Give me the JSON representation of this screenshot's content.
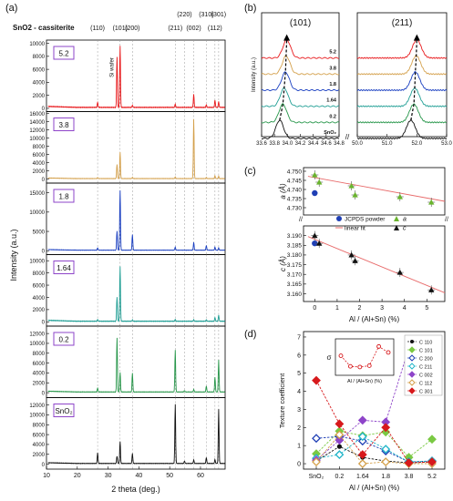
{
  "panels": {
    "a": "(a)",
    "b": "(b)",
    "c": "(c)",
    "d": "(d)"
  },
  "colors": {
    "5.2": "#e8191c",
    "3.8": "#d4a04b",
    "1.8": "#1a3fc1",
    "1.64": "#1f9e94",
    "0.2": "#27964a",
    "SnO2": "#111111",
    "green": "#6ab42e",
    "blue": "#1f3fb5",
    "red": "#e86a6a",
    "purple": "#7a3fc0"
  },
  "chart_data": [
    {
      "id": "a",
      "type": "line",
      "title": "SnO2 - cassiterite",
      "xlabel": "2 theta  (deg.)",
      "ylabel": "Intensity  (a.u.)",
      "xlim": [
        10,
        68
      ],
      "xticks": [
        10,
        20,
        30,
        40,
        50,
        60
      ],
      "hkl_labels": [
        {
          "label": "(110)",
          "x": 26.6
        },
        {
          "label": "(101)",
          "x": 33.9
        },
        {
          "label": "(200)",
          "x": 37.9
        },
        {
          "label": "(211)",
          "x": 51.8
        },
        {
          "label": "(220)",
          "x": 54.8
        },
        {
          "label": "(002)",
          "x": 57.8
        },
        {
          "label": "(310)",
          "x": 61.9
        },
        {
          "label": "(112)",
          "x": 64.7
        },
        {
          "label": "(301)",
          "x": 65.9
        }
      ],
      "reference_lines": [
        26.6,
        33.9,
        37.9,
        51.8,
        54.8,
        57.8,
        61.9,
        64.7,
        65.9
      ],
      "annotation": "Si wafer",
      "series": [
        {
          "name": "5.2",
          "ylim": [
            -500,
            10500
          ],
          "yticks": [
            0,
            2000,
            4000,
            6000,
            8000,
            10000
          ],
          "peaks": [
            [
              26.6,
              800
            ],
            [
              32.9,
              7800
            ],
            [
              33.9,
              9500
            ],
            [
              37.9,
              300
            ],
            [
              51.8,
              500
            ],
            [
              57.8,
              2000
            ],
            [
              61.9,
              400
            ],
            [
              64.7,
              1100
            ],
            [
              65.9,
              900
            ]
          ],
          "baseline": 150
        },
        {
          "name": "3.8",
          "ylim": [
            -1000,
            16500
          ],
          "yticks": [
            0,
            2000,
            4000,
            6000,
            8000,
            10000,
            12000,
            14000,
            16000
          ],
          "peaks": [
            [
              26.6,
              300
            ],
            [
              32.9,
              3500
            ],
            [
              33.9,
              6500
            ],
            [
              37.9,
              300
            ],
            [
              51.8,
              400
            ],
            [
              57.8,
              14500
            ],
            [
              61.9,
              300
            ],
            [
              64.7,
              700
            ],
            [
              65.9,
              600
            ]
          ],
          "baseline": 100
        },
        {
          "name": "1.8",
          "ylim": [
            -1000,
            17500
          ],
          "yticks": [
            0,
            5000,
            10000,
            15000
          ],
          "peaks": [
            [
              26.6,
              600
            ],
            [
              32.9,
              5000
            ],
            [
              33.9,
              15500
            ],
            [
              37.9,
              4000
            ],
            [
              51.8,
              800
            ],
            [
              57.8,
              2000
            ],
            [
              61.9,
              1200
            ],
            [
              64.7,
              800
            ],
            [
              65.9,
              600
            ]
          ],
          "baseline": 150
        },
        {
          "name": "1.64",
          "ylim": [
            -700,
            11000
          ],
          "yticks": [
            0,
            2000,
            4000,
            6000,
            8000,
            10000
          ],
          "peaks": [
            [
              26.6,
              300
            ],
            [
              32.9,
              4000
            ],
            [
              33.9,
              9000
            ],
            [
              37.9,
              200
            ],
            [
              51.8,
              300
            ],
            [
              57.8,
              250
            ],
            [
              61.9,
              250
            ],
            [
              64.7,
              600
            ],
            [
              65.9,
              1000
            ]
          ],
          "baseline": 100
        },
        {
          "name": "0.2",
          "ylim": [
            -1000,
            13500
          ],
          "yticks": [
            0,
            2000,
            4000,
            6000,
            8000,
            10000,
            12000
          ],
          "peaks": [
            [
              26.6,
              800
            ],
            [
              32.9,
              11000
            ],
            [
              33.9,
              4000
            ],
            [
              37.9,
              3800
            ],
            [
              51.8,
              8500
            ],
            [
              54.8,
              300
            ],
            [
              57.8,
              500
            ],
            [
              61.9,
              1200
            ],
            [
              64.7,
              3000
            ],
            [
              65.9,
              6500
            ]
          ],
          "baseline": 150
        },
        {
          "name": "SnO₂",
          "ylim": [
            -1000,
            13500
          ],
          "yticks": [
            0,
            2000,
            4000,
            6000,
            8000,
            10000,
            12000
          ],
          "peaks": [
            [
              26.6,
              2200
            ],
            [
              32.9,
              1500
            ],
            [
              33.9,
              4500
            ],
            [
              37.9,
              2000
            ],
            [
              51.8,
              12000
            ],
            [
              54.8,
              500
            ],
            [
              57.8,
              700
            ],
            [
              61.9,
              1200
            ],
            [
              64.7,
              800
            ],
            [
              65.9,
              11000
            ]
          ],
          "baseline": 150
        }
      ]
    },
    {
      "id": "b",
      "type": "line",
      "ylabel": "Intensity (a.u.)",
      "subplots": [
        {
          "title": "(101)",
          "xlim": [
            33.6,
            34.8
          ],
          "xticks": [
            "33.6",
            "33.8",
            "34.0",
            "34.2",
            "34.4",
            "34.6",
            "34.8"
          ],
          "series": [
            {
              "name": "5.2",
              "center": 33.99
            },
            {
              "name": "3.8",
              "center": 33.98
            },
            {
              "name": "1.8",
              "center": 33.97
            },
            {
              "name": "1.64",
              "center": 33.95
            },
            {
              "name": "0.2",
              "center": 33.93
            },
            {
              "name": "SnO₂",
              "center": 33.88
            }
          ]
        },
        {
          "title": "(211)",
          "xlim": [
            50.0,
            53.0
          ],
          "xticks": [
            "50.0",
            "51.0",
            "52.0",
            "53.0"
          ],
          "series": [
            {
              "name": "5.2",
              "center": 52.0
            },
            {
              "name": "3.8",
              "center": 51.98
            },
            {
              "name": "1.8",
              "center": 51.95
            },
            {
              "name": "1.64",
              "center": 51.93
            },
            {
              "name": "0.2",
              "center": 51.9
            },
            {
              "name": "SnO₂",
              "center": 51.8
            }
          ]
        }
      ],
      "break_mark": "//"
    },
    {
      "id": "c",
      "type": "scatter",
      "xlabel": "Al / (Al+Sn)  (%)",
      "xlim": [
        -0.5,
        5.8
      ],
      "xticks": [
        0,
        1,
        2,
        3,
        4,
        5
      ],
      "top": {
        "ylabel": "a (Å)",
        "ylim": [
          4.726,
          4.752
        ],
        "yticks": [
          "4.730",
          "4.735",
          "4.740",
          "4.745",
          "4.750"
        ],
        "points": [
          [
            0,
            4.748
          ],
          [
            0.2,
            4.744
          ],
          [
            1.64,
            4.742
          ],
          [
            1.8,
            4.737
          ],
          [
            3.8,
            4.736
          ],
          [
            5.2,
            4.733
          ]
        ],
        "jcpds": [
          0,
          4.738
        ],
        "fit": [
          [
            -0.3,
            4.7472
          ],
          [
            5.8,
            4.7335
          ]
        ]
      },
      "bottom": {
        "ylabel": "c (Å)",
        "ylim": [
          3.156,
          3.195
        ],
        "yticks": [
          "3.160",
          "3.165",
          "3.170",
          "3.175",
          "3.180",
          "3.185",
          "3.190"
        ],
        "points": [
          [
            0,
            3.19
          ],
          [
            0.2,
            3.186
          ],
          [
            1.64,
            3.18
          ],
          [
            1.8,
            3.177
          ],
          [
            3.8,
            3.171
          ],
          [
            5.2,
            3.162
          ]
        ],
        "jcpds": [
          0,
          3.186
        ],
        "fit": [
          [
            -0.3,
            3.1895
          ],
          [
            5.8,
            3.1605
          ]
        ]
      },
      "legend": [
        "JCPDS powder",
        "linear fit",
        "a",
        "c"
      ]
    },
    {
      "id": "d",
      "type": "line",
      "xlabel": "Al / (Al+Sn)  (%)",
      "ylabel": "Texture coefficient",
      "categories": [
        "SnO₂",
        "0.2",
        "1.64",
        "1.8",
        "3.8",
        "5.2"
      ],
      "ylim": [
        -0.3,
        7.3
      ],
      "yticks": [
        0,
        1,
        2,
        3,
        4,
        5,
        6,
        7
      ],
      "series": [
        {
          "name": "C 110",
          "color": "#111111",
          "marker": "circle",
          "values": [
            0.15,
            0.95,
            0.35,
            0.15,
            0.05,
            0.1
          ]
        },
        {
          "name": "C 101",
          "color": "#7ac943",
          "marker": "diamond",
          "values": [
            0.55,
            1.8,
            1.55,
            1.75,
            0.35,
            1.35
          ]
        },
        {
          "name": "C 200",
          "color": "#1f3fb5",
          "marker": "diamond-open",
          "values": [
            1.4,
            1.5,
            1.25,
            0.7,
            0.1,
            0.15
          ]
        },
        {
          "name": "C 211",
          "color": "#1fb5c9",
          "marker": "diamond-open",
          "values": [
            0.3,
            0.5,
            1.5,
            0.8,
            0.1,
            0.15
          ]
        },
        {
          "name": "C 002",
          "color": "#8e44c9",
          "marker": "diamond",
          "values": [
            0.2,
            1.3,
            2.4,
            2.3,
            6.4,
            4.2
          ]
        },
        {
          "name": "C 112",
          "color": "#d4a04b",
          "marker": "diamond-open",
          "values": [
            0.1,
            1.6,
            0.0,
            0.1,
            0.0,
            0.0
          ]
        },
        {
          "name": "C 301",
          "color": "#d7191c",
          "marker": "diamond",
          "values": [
            4.6,
            2.2,
            0.5,
            2.0,
            0.05,
            0.1
          ]
        }
      ],
      "inset": {
        "ylabel": "σ",
        "xlabel": "Al / (Al+Sn)  (%)",
        "values": [
          1.5,
          0.7,
          0.65,
          0.75,
          2.2,
          1.75
        ]
      }
    }
  ]
}
